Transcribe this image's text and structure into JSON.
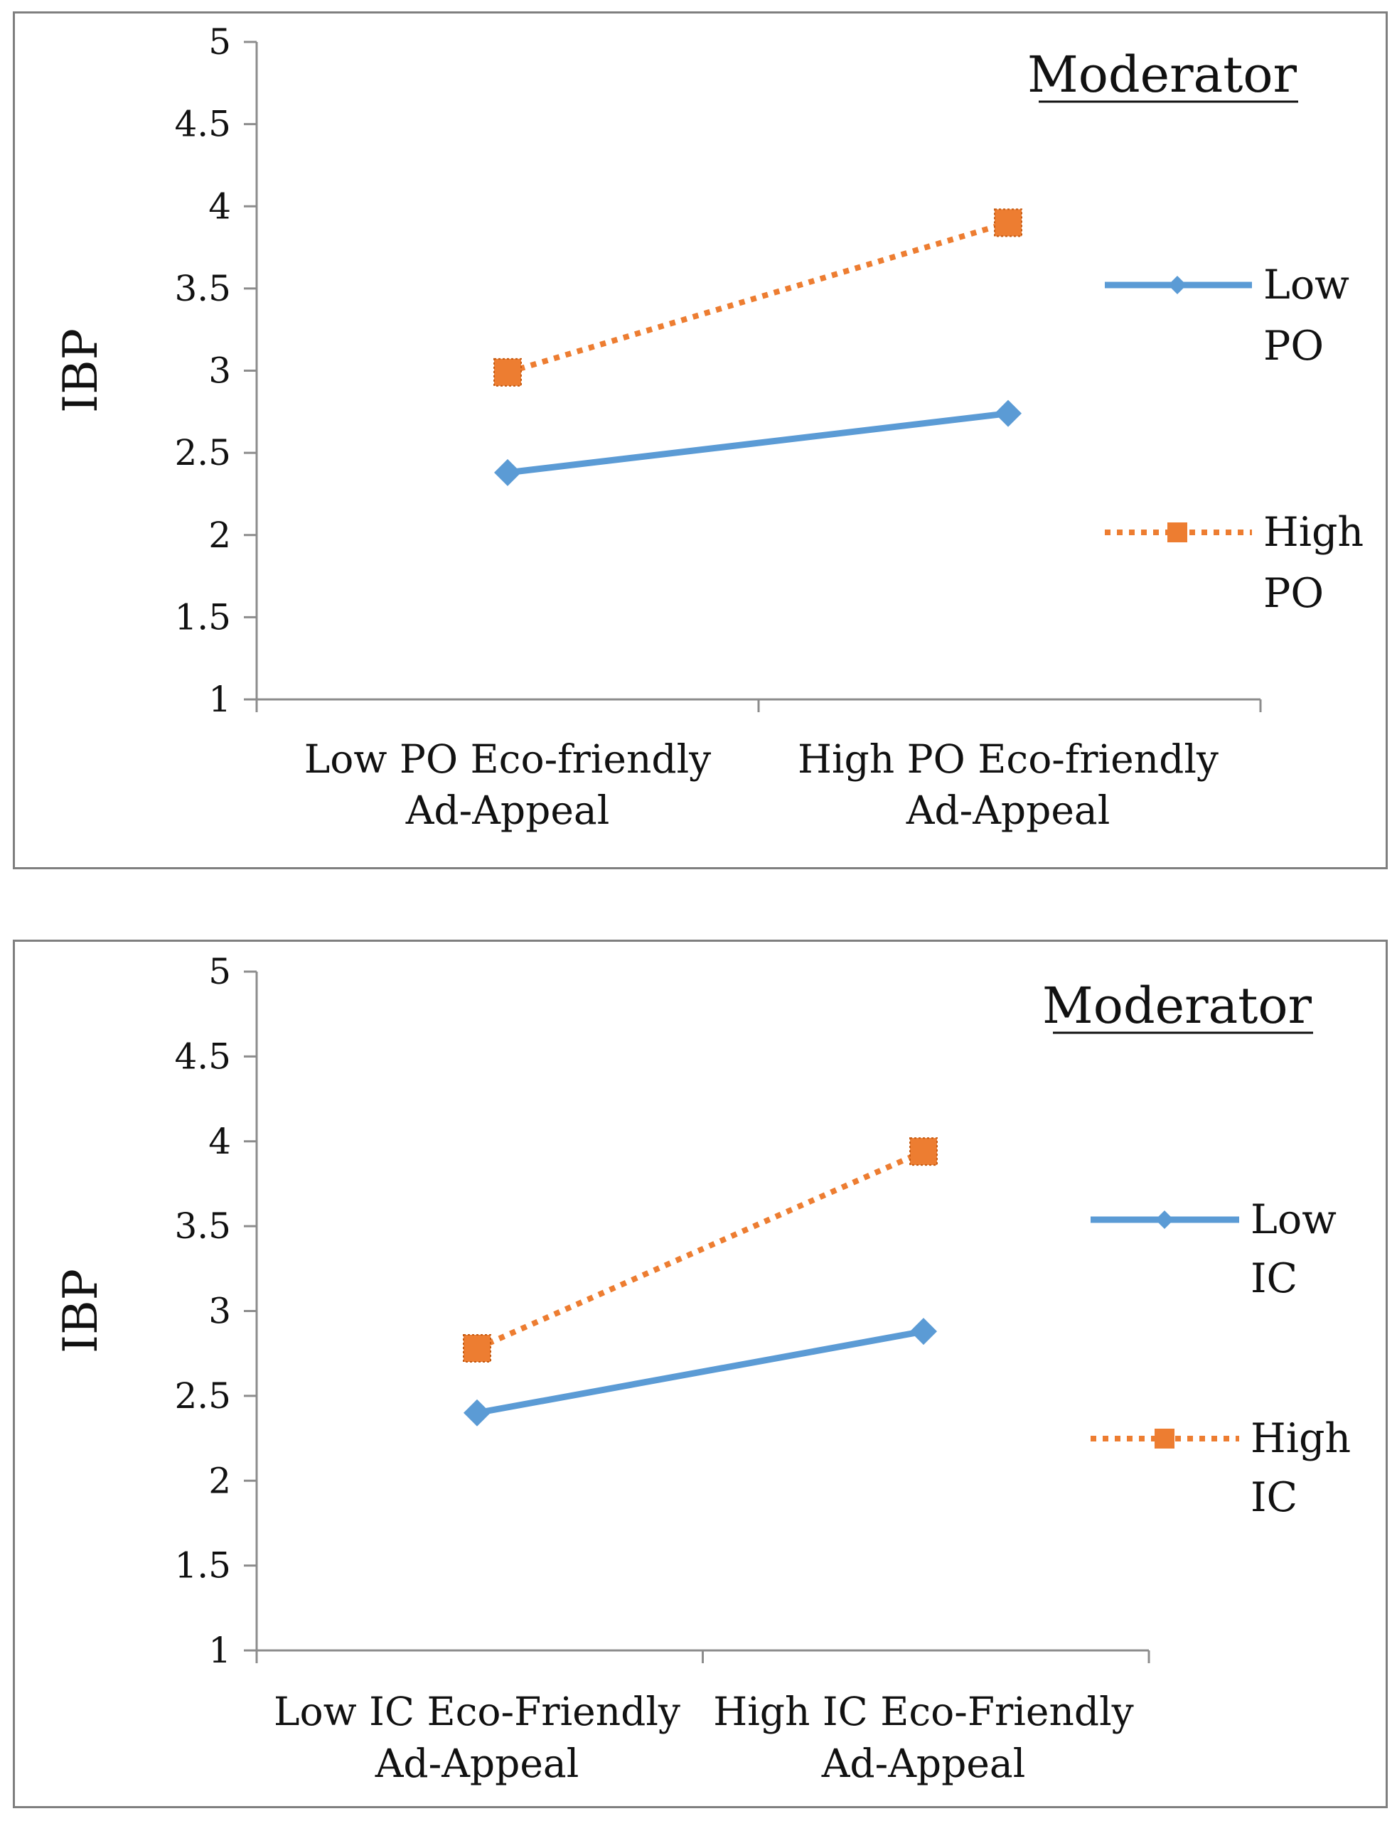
{
  "chart_data": [
    {
      "type": "line",
      "categories": [
        "Low PO Eco-friendly Ad-Appeal",
        "High PO Eco-friendly Ad-Appeal"
      ],
      "category_lines": [
        [
          "Low PO Eco-friendly",
          "Ad-Appeal"
        ],
        [
          "High PO Eco-friendly",
          "Ad-Appeal"
        ]
      ],
      "series": [
        {
          "name": "Low PO",
          "name_lines": [
            "Low",
            "PO"
          ],
          "values": [
            2.38,
            2.74
          ],
          "color": "#5b9bd5",
          "style": "solid",
          "marker": "diamond"
        },
        {
          "name": "High PO",
          "name_lines": [
            "High",
            "PO"
          ],
          "values": [
            2.99,
            3.9
          ],
          "color": "#ed7d31",
          "style": "dotted",
          "marker": "square"
        }
      ],
      "ylabel": "IBP",
      "ylim": [
        1,
        5
      ],
      "yticks": [
        "1",
        "1.5",
        "2",
        "2.5",
        "3",
        "3.5",
        "4",
        "4.5",
        "5"
      ],
      "legend_title": "Moderator",
      "legend_position": "right"
    },
    {
      "type": "line",
      "categories": [
        "Low IC Eco-Friendly Ad-Appeal",
        "High IC Eco-Friendly Ad-Appeal"
      ],
      "category_lines": [
        [
          "Low IC Eco-Friendly",
          "Ad-Appeal"
        ],
        [
          "High IC Eco-Friendly",
          "Ad-Appeal"
        ]
      ],
      "series": [
        {
          "name": "Low IC",
          "name_lines": [
            "Low",
            "IC"
          ],
          "values": [
            2.4,
            2.88
          ],
          "color": "#5b9bd5",
          "style": "solid",
          "marker": "diamond"
        },
        {
          "name": "High IC",
          "name_lines": [
            "High",
            "IC"
          ],
          "values": [
            2.78,
            3.94
          ],
          "color": "#ed7d31",
          "style": "dotted",
          "marker": "square"
        }
      ],
      "ylabel": "IBP",
      "ylim": [
        1,
        5
      ],
      "yticks": [
        "1",
        "1.5",
        "2",
        "2.5",
        "3",
        "3.5",
        "4",
        "4.5",
        "5"
      ],
      "legend_title": "Moderator",
      "legend_position": "right"
    }
  ]
}
